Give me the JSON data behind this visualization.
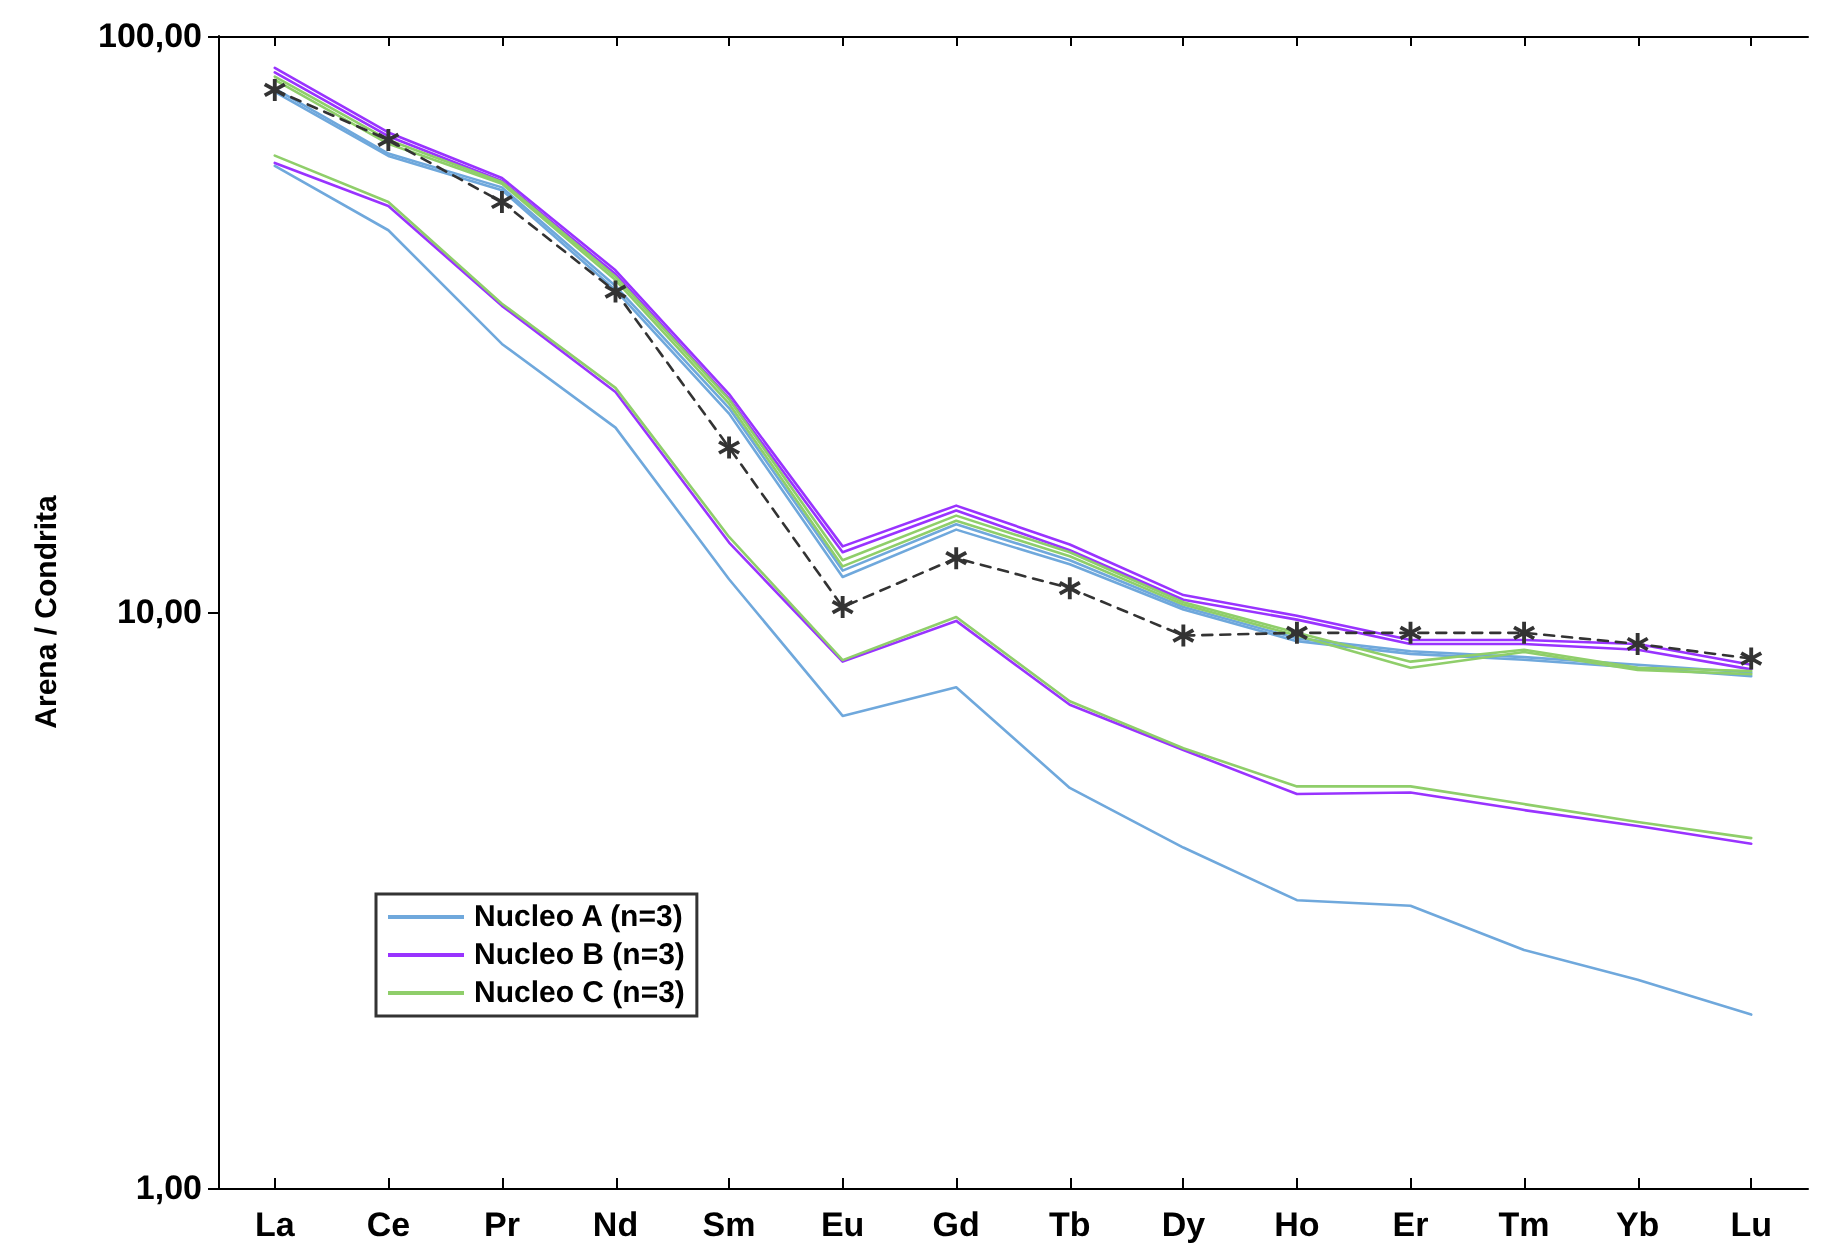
{
  "chart_data": {
    "type": "line",
    "ylabel": "Arena / Condrita",
    "categories": [
      "La",
      "Ce",
      "Pr",
      "Nd",
      "Sm",
      "Eu",
      "Gd",
      "Tb",
      "Dy",
      "Ho",
      "Er",
      "Tm",
      "Yb",
      "Lu"
    ],
    "log": "y",
    "ylim": [
      1,
      100
    ],
    "yticks": [
      {
        "value": 1,
        "label": "1,00"
      },
      {
        "value": 10,
        "label": "10,00"
      },
      {
        "value": 100,
        "label": "100,00"
      }
    ],
    "grid": false,
    "legend": "bottom left",
    "marker": "none",
    "line_style": "solid",
    "series": [
      {
        "name": "Nucleo A (n=3)",
        "color": "#6fa8dc",
        "values": [
          59.5,
          46,
          29.2,
          20.9,
          11.4,
          6.6,
          7.4,
          4.95,
          3.9,
          3.16,
          3.09,
          2.59,
          2.3,
          2.0
        ]
      },
      {
        "name": "Nucleo B (n=3)",
        "color": "#9933ff",
        "values": [
          60.2,
          50.7,
          34,
          24.1,
          13.2,
          8.2,
          9.65,
          6.9,
          5.76,
          4.83,
          4.86,
          4.53,
          4.25,
          3.96
        ]
      },
      {
        "name": "Nucleo C (n=3)",
        "color": "#8fce6a",
        "values": [
          62,
          51.5,
          34.3,
          24.5,
          13.5,
          8.25,
          9.8,
          7.0,
          5.8,
          4.98,
          4.98,
          4.64,
          4.32,
          4.05
        ]
      },
      {
        "color": "#6fa8dc",
        "values": [
          80,
          61.9,
          54,
          36.2,
          22.1,
          11.5,
          13.9,
          12.1,
          10.1,
          8.9,
          8.46,
          8.26,
          8.0,
          7.74
        ]
      },
      {
        "color": "#6fa8dc",
        "values": [
          81,
          62.5,
          54.6,
          36.8,
          22.6,
          11.8,
          14.2,
          12.3,
          10.2,
          9.0,
          8.55,
          8.35,
          8.1,
          7.85
        ]
      },
      {
        "color": "#9933ff",
        "values": [
          88,
          68,
          56.7,
          39.2,
          23.9,
          13.0,
          15.3,
          13.1,
          10.7,
          9.85,
          8.94,
          8.94,
          8.8,
          8.1
        ]
      },
      {
        "color": "#9933ff",
        "values": [
          86.5,
          67,
          56,
          38.6,
          23.5,
          12.7,
          15.0,
          12.8,
          10.5,
          9.7,
          8.8,
          8.8,
          8.6,
          7.95
        ]
      },
      {
        "color": "#8fce6a",
        "values": [
          83.9,
          65,
          55.4,
          37.7,
          23,
          12.0,
          14.4,
          12.5,
          10.3,
          9.1,
          8.0,
          8.52,
          7.93,
          7.8
        ]
      },
      {
        "color": "#8fce6a",
        "values": [
          85,
          66,
          55.8,
          38.2,
          23.4,
          12.3,
          14.7,
          12.7,
          10.4,
          9.2,
          8.2,
          8.6,
          8.0,
          7.9
        ]
      },
      {
        "color": "#333333",
        "marker": "cross",
        "line_style": "dashed",
        "values": [
          80.6,
          66,
          51.5,
          36,
          19.3,
          10.2,
          12.4,
          11.0,
          9.1,
          9.2,
          9.2,
          9.2,
          8.8,
          8.3
        ]
      }
    ]
  }
}
